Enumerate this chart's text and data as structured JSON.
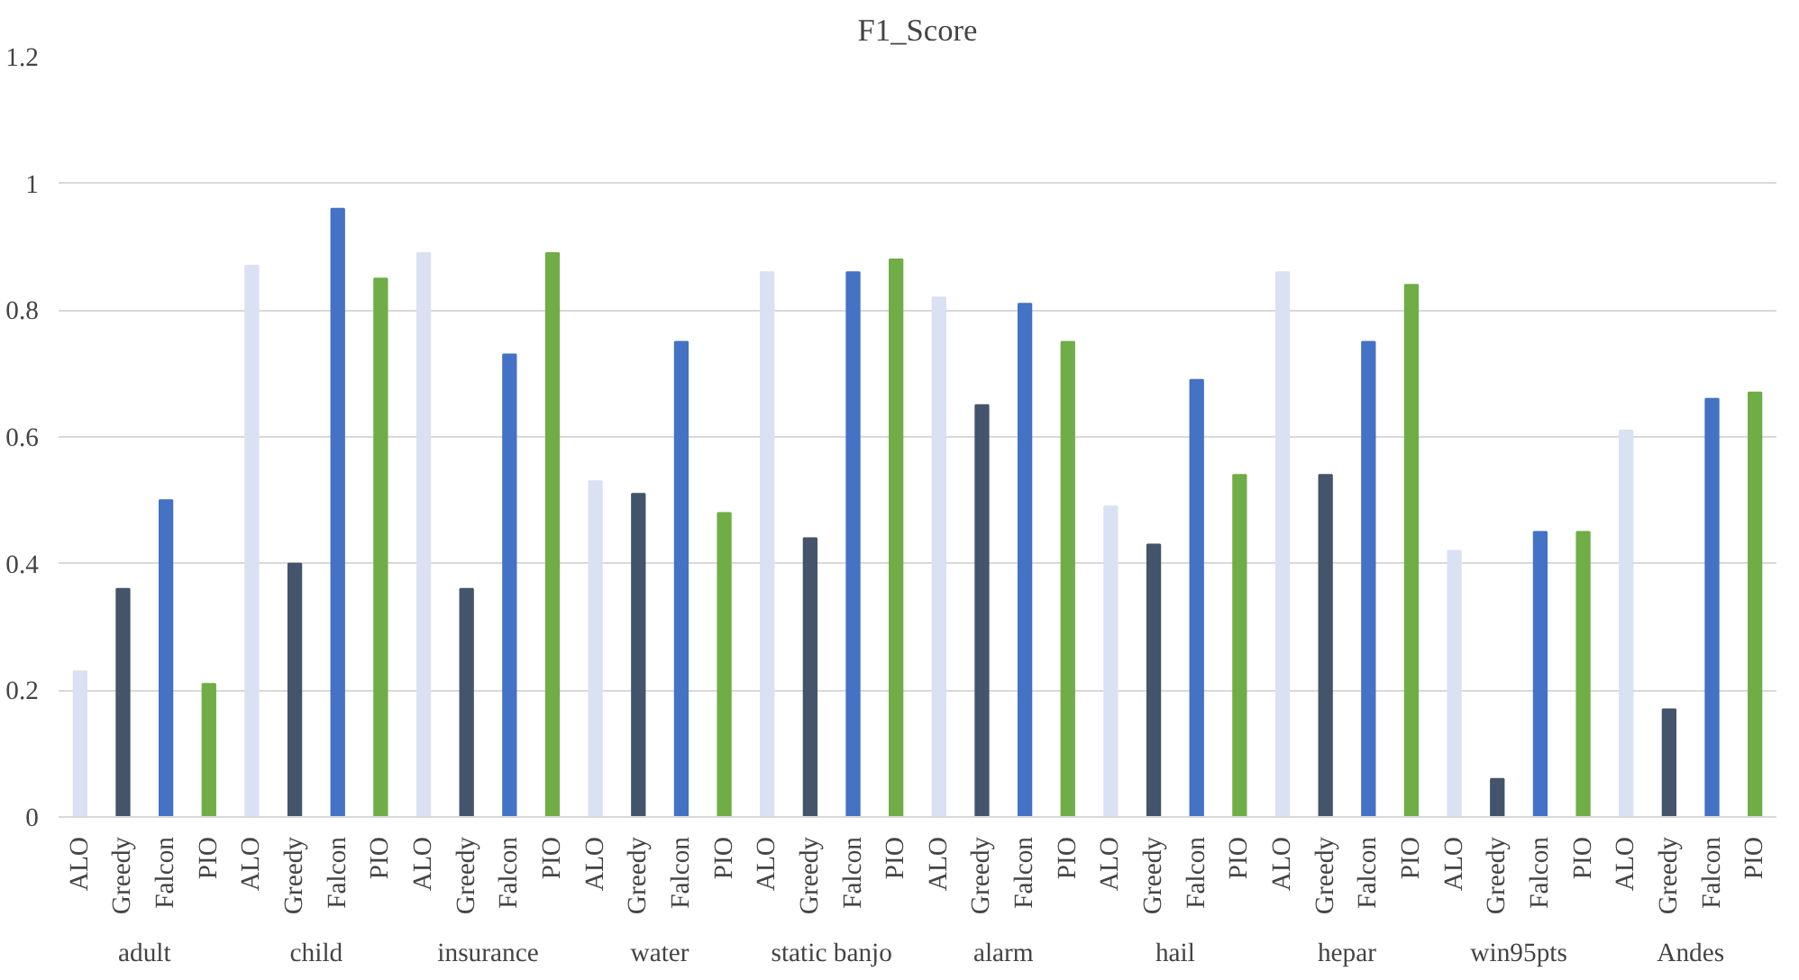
{
  "chart_data": {
    "type": "bar",
    "title": "F1_Score",
    "categories": [
      "adult",
      "child",
      "insurance",
      "water",
      "static banjo",
      "alarm",
      "hail",
      "hepar",
      "win95pts",
      "Andes"
    ],
    "series": [
      {
        "name": "ALO",
        "color": "#d9e1f2",
        "values": [
          0.23,
          0.87,
          0.89,
          0.53,
          0.86,
          0.82,
          0.49,
          0.86,
          0.42,
          0.61
        ]
      },
      {
        "name": "Greedy",
        "color": "#44546a",
        "values": [
          0.36,
          0.4,
          0.36,
          0.51,
          0.44,
          0.65,
          0.43,
          0.54,
          0.06,
          0.17
        ]
      },
      {
        "name": "Falcon",
        "color": "#4472c4",
        "values": [
          0.5,
          0.96,
          0.73,
          0.75,
          0.86,
          0.81,
          0.69,
          0.75,
          0.45,
          0.66
        ]
      },
      {
        "name": "PIO",
        "color": "#70ad47",
        "values": [
          0.21,
          0.85,
          0.89,
          0.48,
          0.88,
          0.75,
          0.54,
          0.84,
          0.45,
          0.67
        ]
      }
    ],
    "ylim": [
      0,
      1.2
    ],
    "yticks": [
      0,
      0.2,
      0.4,
      0.6,
      0.8,
      1,
      1.2
    ],
    "grid": "y"
  }
}
